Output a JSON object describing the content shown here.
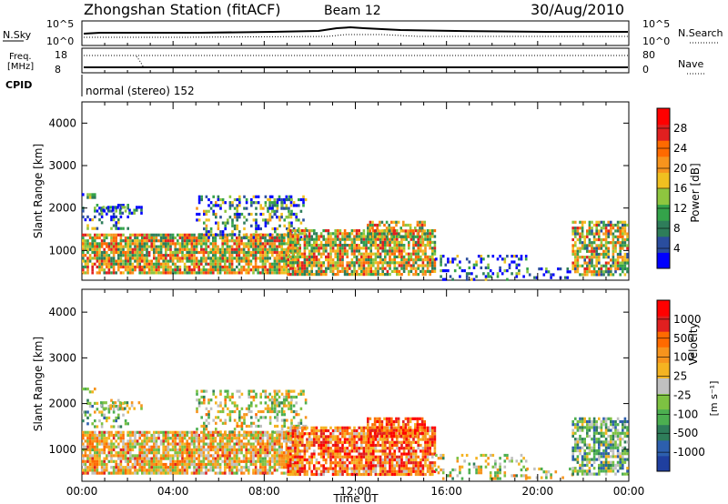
{
  "header": {
    "station": "Zhongshan Station (fitACF)",
    "beam": "Beam 12",
    "date": "30/Aug/2010"
  },
  "top_panels": {
    "nsky_label": "N.Sky",
    "nsearch_label": "N.Search",
    "nsky_ticks": [
      "10^5",
      "10^0"
    ],
    "nsearch_ticks": [
      "10^5",
      "10^0"
    ],
    "freq_label_1": "Freq.",
    "freq_label_2": "[MHz]",
    "freq_ticks": [
      "18",
      "8"
    ],
    "nave_label": "Nave",
    "nave_ticks": [
      "80",
      "0"
    ],
    "cpid_label": "CPID",
    "cpid_text": "normal (stereo) 152"
  },
  "colors": {
    "power": [
      "#0000ff",
      "#2a4d9e",
      "#2e7d5a",
      "#34a34a",
      "#8ec63f",
      "#f0c020",
      "#f7941d",
      "#ff6a00",
      "#e02020",
      "#ff0000"
    ],
    "velocity": [
      "#1f3f9f",
      "#2d5fae",
      "#2e7d5a",
      "#4caf50",
      "#7dc242",
      "#c0c0c0",
      "#f5b321",
      "#f7941d",
      "#ff6a00",
      "#e02020",
      "#ff0000"
    ]
  },
  "chart_data": [
    {
      "type": "heatmap",
      "ylabel": "Slant Range [km]",
      "ylim": [
        300,
        4500
      ],
      "yticks": [
        "4000",
        "3000",
        "2000",
        "1000"
      ],
      "colorbar_label": "Power [dB]",
      "colorbar_ticks": [
        "28",
        "24",
        "20",
        "16",
        "12",
        "8",
        "4"
      ],
      "colorbar_range": [
        0,
        32
      ]
    },
    {
      "type": "heatmap",
      "ylabel": "Slant Range [km]",
      "ylim": [
        300,
        4500
      ],
      "yticks": [
        "4000",
        "3000",
        "2000",
        "1000"
      ],
      "xlabel": "Time UT",
      "xticks": [
        "00:00",
        "04:00",
        "08:00",
        "12:00",
        "16:00",
        "20:00",
        "00:00"
      ],
      "xlim": [
        0,
        24
      ],
      "colorbar_label": "Velocity",
      "colorbar_unit": "[m s⁻¹]",
      "colorbar_ticks": [
        "1000",
        "500",
        "100",
        "25",
        "-25",
        "-100",
        "-500",
        "-1000"
      ]
    }
  ]
}
